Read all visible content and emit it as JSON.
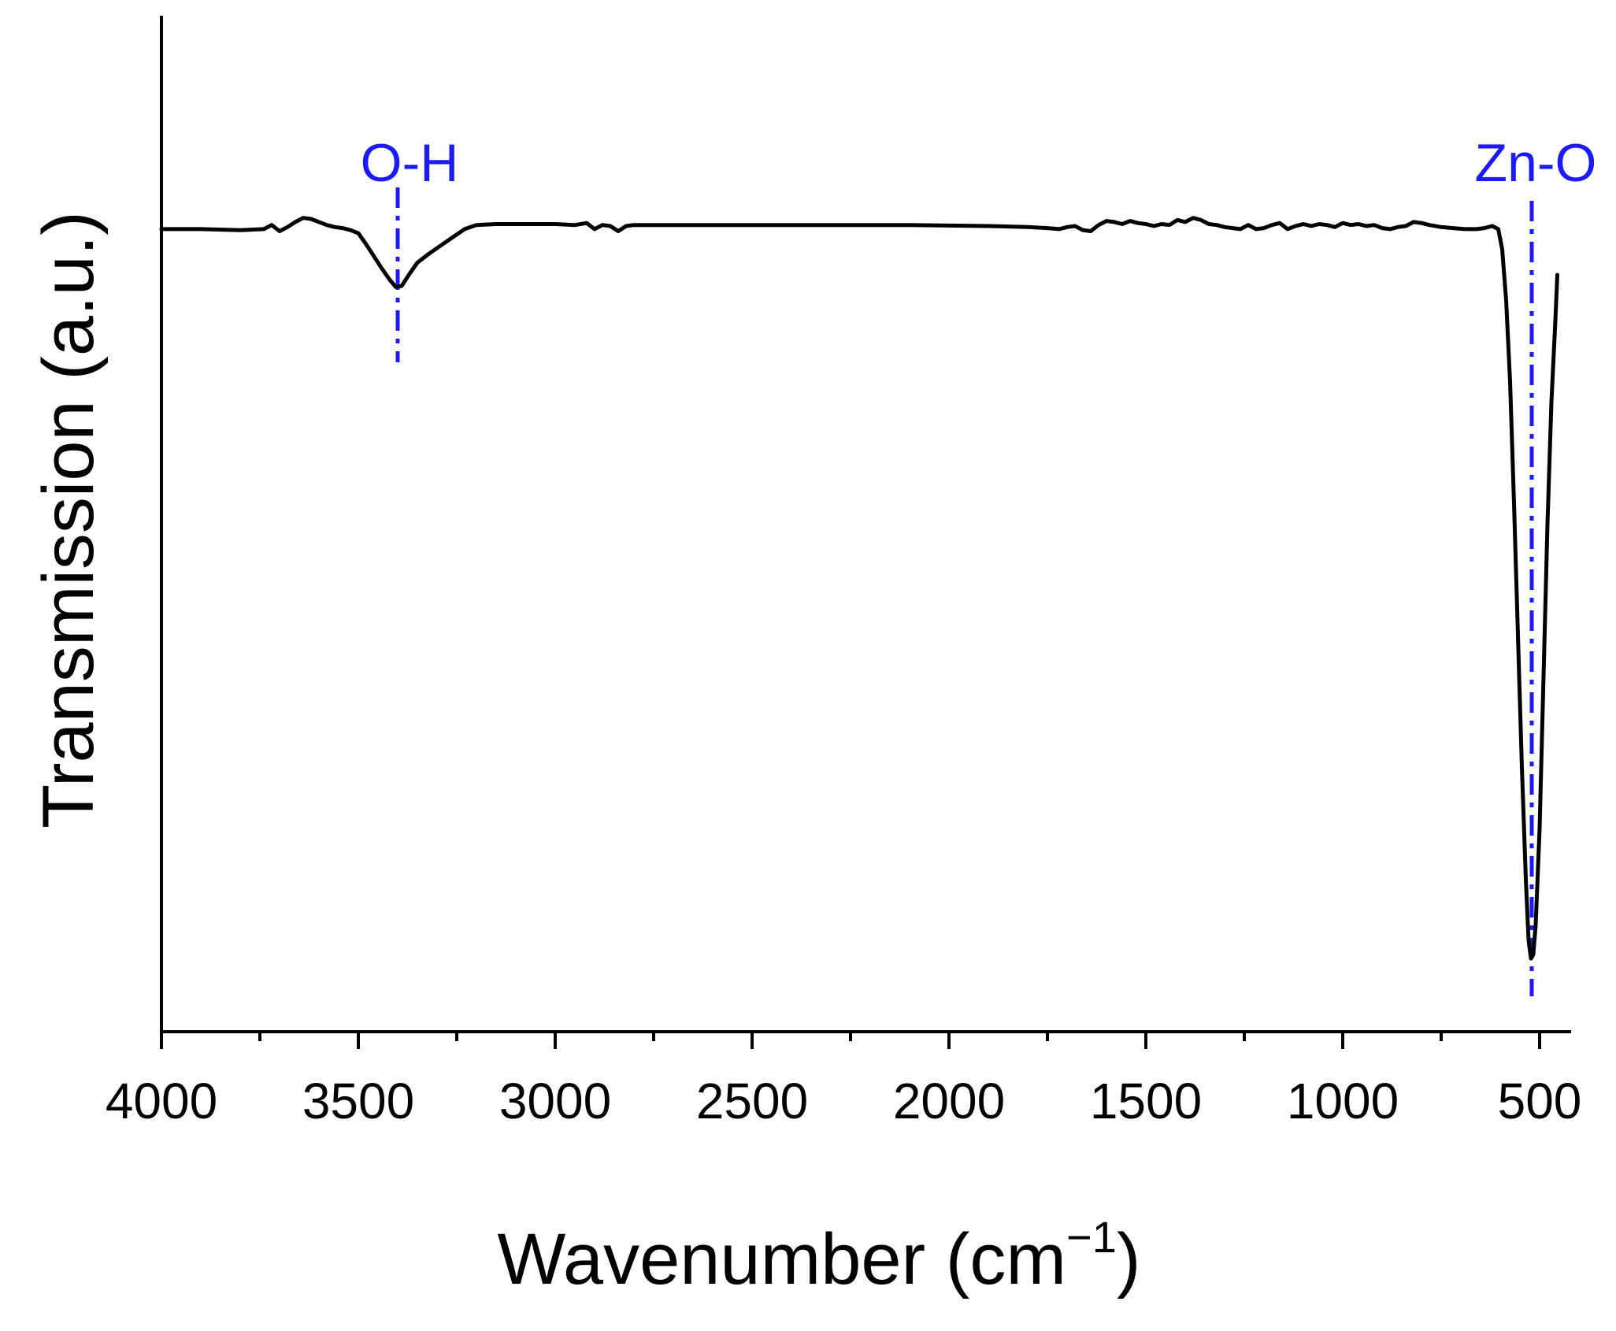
{
  "chart_data": {
    "type": "line",
    "xlabel": "Wavenumber (cm",
    "xlabel_superscript": "−1",
    "xlabel_suffix": ")",
    "ylabel": "Transmission (a.u.)",
    "x_reversed": true,
    "xlim": [
      4000,
      440
    ],
    "ylim": [
      0,
      100
    ],
    "y_tick_labels_shown": false,
    "x_ticks": [
      4000,
      3500,
      3000,
      2500,
      2000,
      1500,
      1000,
      500
    ],
    "x_minor_ticks": [
      3750,
      3250,
      2750,
      2250,
      1750,
      1250,
      750
    ],
    "line_color": "#000000",
    "annotation_color": "#1a1aff",
    "annotations": [
      {
        "label": "O-H",
        "x": 3400
      },
      {
        "label": "Zn-O",
        "x": 520
      }
    ],
    "series": [
      {
        "points": [
          [
            4000,
            79.0
          ],
          [
            3900,
            79.0
          ],
          [
            3800,
            78.9
          ],
          [
            3740,
            79.0
          ],
          [
            3720,
            79.4
          ],
          [
            3700,
            78.8
          ],
          [
            3680,
            79.2
          ],
          [
            3660,
            79.7
          ],
          [
            3640,
            80.1
          ],
          [
            3620,
            80.0
          ],
          [
            3600,
            79.7
          ],
          [
            3580,
            79.4
          ],
          [
            3560,
            79.2
          ],
          [
            3540,
            79.1
          ],
          [
            3520,
            78.9
          ],
          [
            3500,
            78.6
          ],
          [
            3480,
            77.5
          ],
          [
            3460,
            76.3
          ],
          [
            3440,
            75.1
          ],
          [
            3420,
            74.0
          ],
          [
            3405,
            73.3
          ],
          [
            3390,
            73.4
          ],
          [
            3370,
            74.6
          ],
          [
            3350,
            75.7
          ],
          [
            3320,
            76.6
          ],
          [
            3290,
            77.4
          ],
          [
            3260,
            78.2
          ],
          [
            3230,
            79.0
          ],
          [
            3200,
            79.4
          ],
          [
            3150,
            79.5
          ],
          [
            3100,
            79.5
          ],
          [
            3000,
            79.5
          ],
          [
            2950,
            79.4
          ],
          [
            2920,
            79.6
          ],
          [
            2900,
            79.0
          ],
          [
            2880,
            79.4
          ],
          [
            2860,
            79.3
          ],
          [
            2840,
            78.8
          ],
          [
            2820,
            79.3
          ],
          [
            2800,
            79.4
          ],
          [
            2700,
            79.4
          ],
          [
            2500,
            79.4
          ],
          [
            2300,
            79.4
          ],
          [
            2100,
            79.4
          ],
          [
            1900,
            79.3
          ],
          [
            1800,
            79.2
          ],
          [
            1750,
            79.1
          ],
          [
            1720,
            79.0
          ],
          [
            1700,
            79.2
          ],
          [
            1680,
            79.3
          ],
          [
            1660,
            78.9
          ],
          [
            1640,
            78.8
          ],
          [
            1620,
            79.4
          ],
          [
            1600,
            79.8
          ],
          [
            1580,
            79.7
          ],
          [
            1560,
            79.5
          ],
          [
            1540,
            79.8
          ],
          [
            1520,
            79.6
          ],
          [
            1500,
            79.5
          ],
          [
            1480,
            79.3
          ],
          [
            1460,
            79.5
          ],
          [
            1440,
            79.4
          ],
          [
            1420,
            79.9
          ],
          [
            1400,
            79.7
          ],
          [
            1380,
            80.1
          ],
          [
            1360,
            79.9
          ],
          [
            1340,
            79.5
          ],
          [
            1320,
            79.4
          ],
          [
            1300,
            79.2
          ],
          [
            1280,
            79.1
          ],
          [
            1260,
            79.0
          ],
          [
            1240,
            79.4
          ],
          [
            1220,
            79.0
          ],
          [
            1200,
            79.1
          ],
          [
            1180,
            79.4
          ],
          [
            1160,
            79.6
          ],
          [
            1140,
            79.0
          ],
          [
            1120,
            79.3
          ],
          [
            1100,
            79.5
          ],
          [
            1080,
            79.3
          ],
          [
            1060,
            79.5
          ],
          [
            1040,
            79.4
          ],
          [
            1020,
            79.2
          ],
          [
            1000,
            79.6
          ],
          [
            980,
            79.4
          ],
          [
            960,
            79.5
          ],
          [
            940,
            79.3
          ],
          [
            920,
            79.4
          ],
          [
            900,
            79.1
          ],
          [
            880,
            79.0
          ],
          [
            860,
            79.2
          ],
          [
            840,
            79.3
          ],
          [
            820,
            79.7
          ],
          [
            800,
            79.6
          ],
          [
            780,
            79.4
          ],
          [
            750,
            79.2
          ],
          [
            720,
            79.1
          ],
          [
            690,
            79.0
          ],
          [
            660,
            79.0
          ],
          [
            640,
            79.1
          ],
          [
            620,
            79.3
          ],
          [
            605,
            79.0
          ],
          [
            595,
            77.0
          ],
          [
            585,
            72.0
          ],
          [
            575,
            64.0
          ],
          [
            565,
            52.0
          ],
          [
            555,
            39.0
          ],
          [
            545,
            26.0
          ],
          [
            535,
            15.0
          ],
          [
            528,
            9.0
          ],
          [
            522,
            7.2
          ],
          [
            516,
            7.6
          ],
          [
            510,
            10.5
          ],
          [
            500,
            20.0
          ],
          [
            490,
            35.0
          ],
          [
            480,
            50.0
          ],
          [
            470,
            62.0
          ],
          [
            460,
            70.0
          ],
          [
            455,
            74.5
          ]
        ]
      }
    ]
  }
}
